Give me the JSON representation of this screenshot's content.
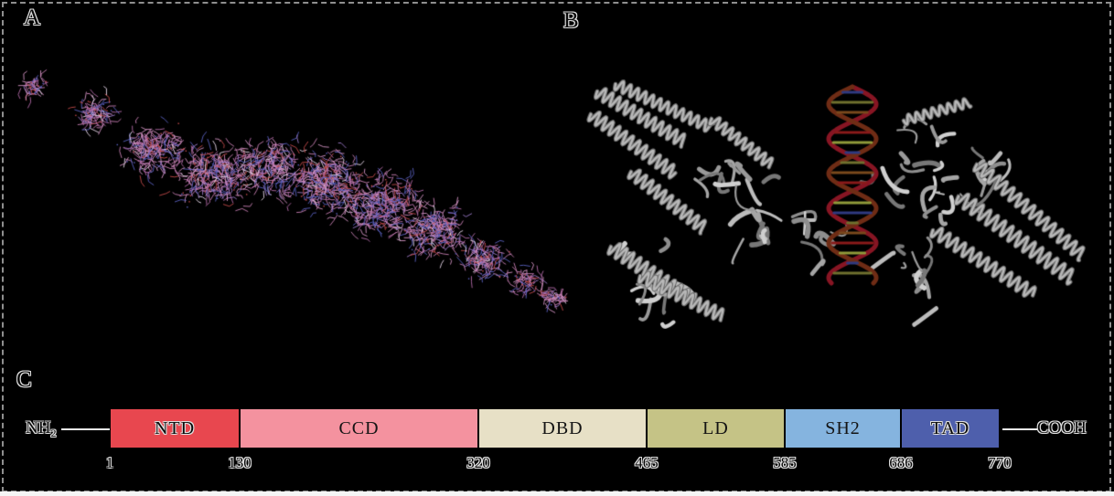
{
  "figure": {
    "background_color": "#000000",
    "border_style": "dashed",
    "panel_labels": {
      "a": "A",
      "b": "B",
      "c": "C"
    }
  },
  "panel_a": {
    "content": "protein-stick-model",
    "palette": [
      "#c77eb3",
      "#d494c4",
      "#b46aa8",
      "#9a79c8",
      "#5a60c0",
      "#c24a4a"
    ]
  },
  "panel_b": {
    "content": "protein-ribbon-dna-complex",
    "ribbon_color": "#a5a5a5",
    "dna_color": "#871523"
  },
  "panel_c": {
    "n_terminus_label": "NH",
    "n_terminus_subscript": "2",
    "c_terminus_label": "COOH",
    "domains": [
      {
        "label": "NTD",
        "start": "1",
        "end": "130",
        "color": "#e8474f",
        "label_style": "outline"
      },
      {
        "label": "CCD",
        "start": "130",
        "end": "320",
        "color": "#f4929f",
        "label_style": "solid"
      },
      {
        "label": "DBD",
        "start": "320",
        "end": "465",
        "color": "#e7e0c6",
        "label_style": "solid"
      },
      {
        "label": "LD",
        "start": "465",
        "end": "585",
        "color": "#c5c386",
        "label_style": "solid"
      },
      {
        "label": "SH2",
        "start": "585",
        "end": "686",
        "color": "#85b4df",
        "label_style": "solid"
      },
      {
        "label": "TAD",
        "start": "686",
        "end": "770",
        "color": "#4e5fac",
        "label_style": "outline"
      }
    ],
    "boundary_labels": [
      "1",
      "130",
      "320",
      "465",
      "585",
      "686",
      "770"
    ]
  }
}
